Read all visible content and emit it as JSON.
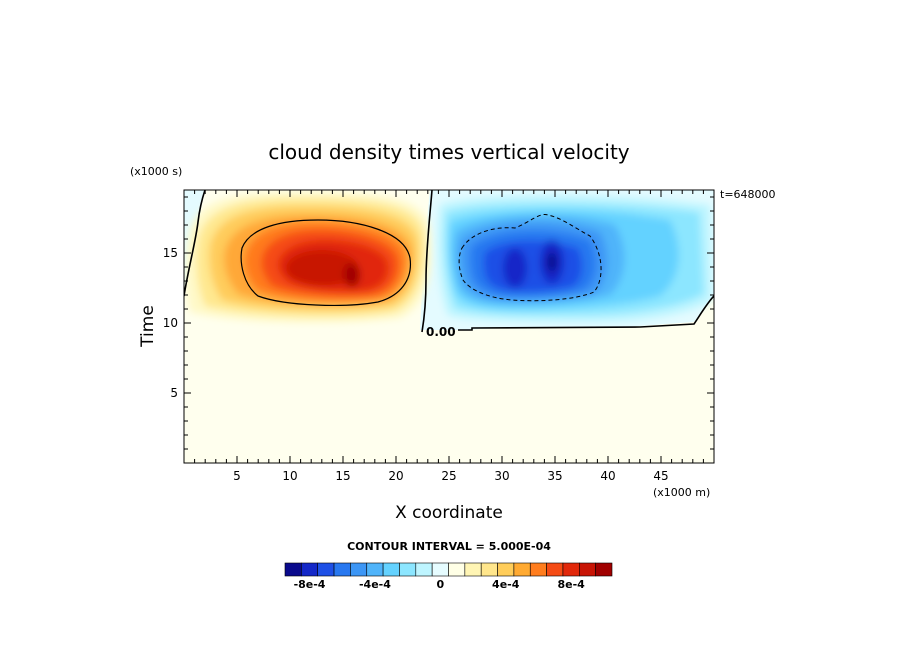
{
  "chart_data": {
    "type": "heatmap",
    "title": "cloud density times vertical velocity",
    "xlabel": "X coordinate",
    "ylabel": "Time",
    "x_unit_label": "(x1000 m)",
    "y_unit_label": "(x1000 s)",
    "time_label": "t=648000",
    "xlim": [
      0,
      50
    ],
    "ylim": [
      0,
      19.5
    ],
    "x_ticks": [
      5,
      10,
      15,
      20,
      25,
      30,
      35,
      40,
      45
    ],
    "y_ticks": [
      5,
      10,
      15
    ],
    "contour_label": "0.00",
    "contour_interval_text": "CONTOUR INTERVAL = 5.000E-04",
    "colorbar": {
      "levels": [
        -0.0009,
        -0.0008,
        -0.0007,
        -0.0006,
        -0.0005,
        -0.0004,
        -0.0003,
        -0.0002,
        -0.0001,
        0,
        0.0001,
        0.0002,
        0.0003,
        0.0004,
        0.0005,
        0.0006,
        0.0007,
        0.0008,
        0.0009,
        0.001
      ],
      "colors": [
        "#0a0a8c",
        "#1428c8",
        "#1e50e6",
        "#2878f0",
        "#3c96f5",
        "#50b4fa",
        "#64d2ff",
        "#8ce6ff",
        "#bef5ff",
        "#e6fcff",
        "#ffffe6",
        "#fff5b4",
        "#ffe68c",
        "#ffcd5a",
        "#ffaa32",
        "#ff7d1e",
        "#f54b14",
        "#e1280a",
        "#c81405",
        "#a00000"
      ],
      "tick_labels": [
        {
          "text": "-8e-4",
          "value": -0.0008
        },
        {
          "text": "-4e-4",
          "value": -0.0004
        },
        {
          "text": "0",
          "value": 0
        },
        {
          "text": "4e-4",
          "value": 0.0004
        },
        {
          "text": "8e-4",
          "value": 0.0008
        }
      ]
    },
    "features": [
      {
        "name": "updraft-core",
        "center_x": 13.5,
        "center_time": 14.5,
        "peak": 0.0009
      },
      {
        "name": "downdraft-core-west",
        "center_x": 30.5,
        "center_time": 14.3,
        "peak": -0.0008
      },
      {
        "name": "downdraft-core-east",
        "center_x": 35,
        "center_time": 14.8,
        "peak": -0.0008
      }
    ],
    "background_value": 5e-05
  }
}
